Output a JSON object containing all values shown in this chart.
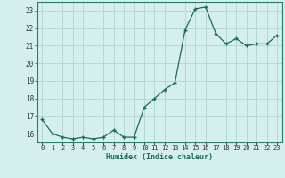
{
  "x": [
    0,
    1,
    2,
    3,
    4,
    5,
    6,
    7,
    8,
    9,
    10,
    11,
    12,
    13,
    14,
    15,
    16,
    17,
    18,
    19,
    20,
    21,
    22,
    23
  ],
  "y": [
    16.8,
    16.0,
    15.8,
    15.7,
    15.8,
    15.7,
    15.8,
    16.2,
    15.8,
    15.8,
    17.5,
    18.0,
    18.5,
    18.9,
    21.9,
    23.1,
    23.2,
    21.7,
    21.1,
    21.4,
    21.0,
    21.1,
    21.1,
    21.6
  ],
  "line_color": "#1a6b5a",
  "marker": "+",
  "marker_size": 3,
  "marker_lw": 1.0,
  "bg_color": "#d5eeee",
  "grid_color": "#aed4d4",
  "xlabel": "Humidex (Indice chaleur)",
  "ylim": [
    15.5,
    23.5
  ],
  "xlim": [
    -0.5,
    23.5
  ],
  "yticks": [
    16,
    17,
    18,
    19,
    20,
    21,
    22,
    23
  ],
  "xticks": [
    0,
    1,
    2,
    3,
    4,
    5,
    6,
    7,
    8,
    9,
    10,
    11,
    12,
    13,
    14,
    15,
    16,
    17,
    18,
    19,
    20,
    21,
    22,
    23
  ],
  "xtick_labels": [
    "0",
    "1",
    "2",
    "3",
    "4",
    "5",
    "6",
    "7",
    "8",
    "9",
    "10",
    "11",
    "12",
    "13",
    "14",
    "15",
    "16",
    "17",
    "18",
    "19",
    "20",
    "21",
    "22",
    "23"
  ],
  "label_color": "#1a6b5a",
  "tick_color": "#333333"
}
